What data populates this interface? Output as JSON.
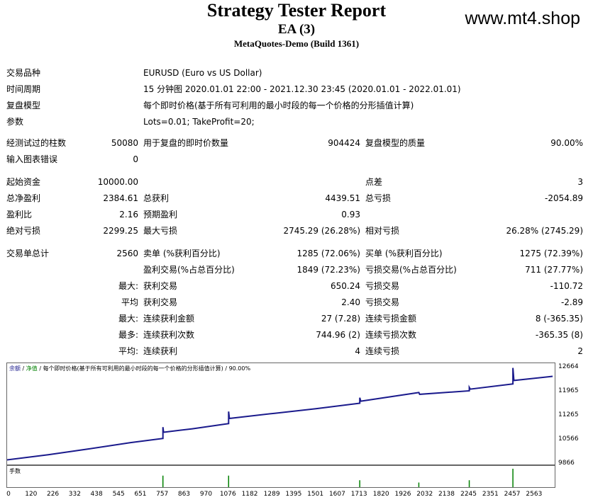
{
  "header": {
    "title": "Strategy Tester Report",
    "ea": "EA (3)",
    "build": "MetaQuotes-Demo (Build 1361)",
    "watermark": "www.mt4.shop"
  },
  "info": {
    "symbol_label": "交易品种",
    "symbol_value": "EURUSD (Euro vs US Dollar)",
    "period_label": "时间周期",
    "period_value": "15 分钟图 2020.01.01 22:00 - 2021.12.30 23:45 (2020.01.01 - 2022.01.01)",
    "model_label": "复盘模型",
    "model_value": "每个即时价格(基于所有可利用的最小时段的每一个价格的分形插值计算)",
    "params_label": "参数",
    "params_value": "Lots=0.01; TakeProfit=20;"
  },
  "stats": {
    "bars_label": "经测试过的柱数",
    "bars_value": "50080",
    "ticks_label": "用于复盘的即时价数量",
    "ticks_value": "904424",
    "quality_label": "复盘模型的质量",
    "quality_value": "90.00%",
    "errors_label": "输入图表错误",
    "errors_value": "0",
    "deposit_label": "起始资金",
    "deposit_value": "10000.00",
    "spread_label": "点差",
    "spread_value": "3",
    "net_label": "总净盈利",
    "net_value": "2384.61",
    "gross_profit_label": "总获利",
    "gross_profit_value": "4439.51",
    "gross_loss_label": "总亏损",
    "gross_loss_value": "-2054.89",
    "pf_label": "盈利比",
    "pf_value": "2.16",
    "payoff_label": "预期盈利",
    "payoff_value": "0.93",
    "abs_dd_label": "绝对亏损",
    "abs_dd_value": "2299.25",
    "max_dd_label": "最大亏损",
    "max_dd_value": "2745.29 (26.28%)",
    "rel_dd_label": "相对亏损",
    "rel_dd_value": "26.28% (2745.29)",
    "trades_label": "交易单总计",
    "trades_value": "2560",
    "short_label": "卖单 (%获利百分比)",
    "short_value": "1285 (72.06%)",
    "long_label": "买单 (%获利百分比)",
    "long_value": "1275 (72.39%)",
    "profit_trades_label": "盈利交易(%占总百分比)",
    "profit_trades_value": "1849 (72.23%)",
    "loss_trades_label": "亏损交易(%占总百分比)",
    "loss_trades_value": "711 (27.77%)",
    "max_prefix": "最大:",
    "avg_prefix": "平均",
    "max_prefix2": "最大:",
    "most_prefix": "最多:",
    "avg_prefix2": "平均:",
    "largest_profit_label": "获利交易",
    "largest_profit_value": "650.24",
    "largest_loss_label": "亏损交易",
    "largest_loss_value": "-110.72",
    "avg_profit_label": "获利交易",
    "avg_profit_value": "2.40",
    "avg_loss_label": "亏损交易",
    "avg_loss_value": "-2.89",
    "max_cons_wins_money_label": "连续获利金额",
    "max_cons_wins_money_value": "27 (7.28)",
    "max_cons_loss_money_label": "连续亏损金额",
    "max_cons_loss_money_value": "8 (-365.35)",
    "max_cons_wins_count_label": "连续获利次数",
    "max_cons_wins_count_value": "744.96 (2)",
    "max_cons_loss_count_label": "连续亏损次数",
    "max_cons_loss_count_value": "-365.35 (8)",
    "avg_cons_wins_label": "连续获利",
    "avg_cons_wins_value": "4",
    "avg_cons_loss_label": "连续亏损",
    "avg_cons_loss_value": "2"
  },
  "chart_legend": {
    "balance": "余额",
    "sep1": " / ",
    "equity": "净值",
    "rest": " / 每个即时价格(基于所有可利用的最小时段的每一个价格的分形插值计算) / 90.00%"
  },
  "volume_label": "手数",
  "colors": {
    "balance": "#1a1a8c",
    "equity": "#008000"
  },
  "chart_data": {
    "type": "line",
    "series": [
      {
        "name": "余额",
        "x": [
          0,
          200,
          400,
          600,
          757,
          757,
          760,
          900,
          1076,
          1076,
          1080,
          1300,
          1500,
          1713,
          1713,
          1718,
          2000,
          2004,
          2245,
          2245,
          2250,
          2457,
          2457,
          2462,
          2650
        ],
        "values": [
          10000,
          10150,
          10320,
          10500,
          10620,
          10950,
          10800,
          10900,
          11050,
          11400,
          11200,
          11350,
          11480,
          11640,
          11800,
          11700,
          11950,
          11900,
          12000,
          12100,
          12050,
          12200,
          12664,
          12300,
          12420
        ]
      }
    ],
    "volume": {
      "x": [
        757,
        1076,
        1713,
        2000,
        2245,
        2457
      ],
      "values": [
        0.05,
        0.05,
        0.03,
        0.02,
        0.03,
        0.08
      ]
    },
    "yticks": [
      "12664",
      "11965",
      "11265",
      "10566",
      "9866"
    ],
    "xticks": [
      "0",
      "120",
      "226",
      "332",
      "438",
      "545",
      "651",
      "757",
      "863",
      "970",
      "1076",
      "1182",
      "1289",
      "1395",
      "1501",
      "1607",
      "1713",
      "1820",
      "1926",
      "2032",
      "2138",
      "2245",
      "2351",
      "2457",
      "2563"
    ],
    "ylim": [
      9866,
      12800
    ],
    "xlim": [
      0,
      2660
    ]
  }
}
